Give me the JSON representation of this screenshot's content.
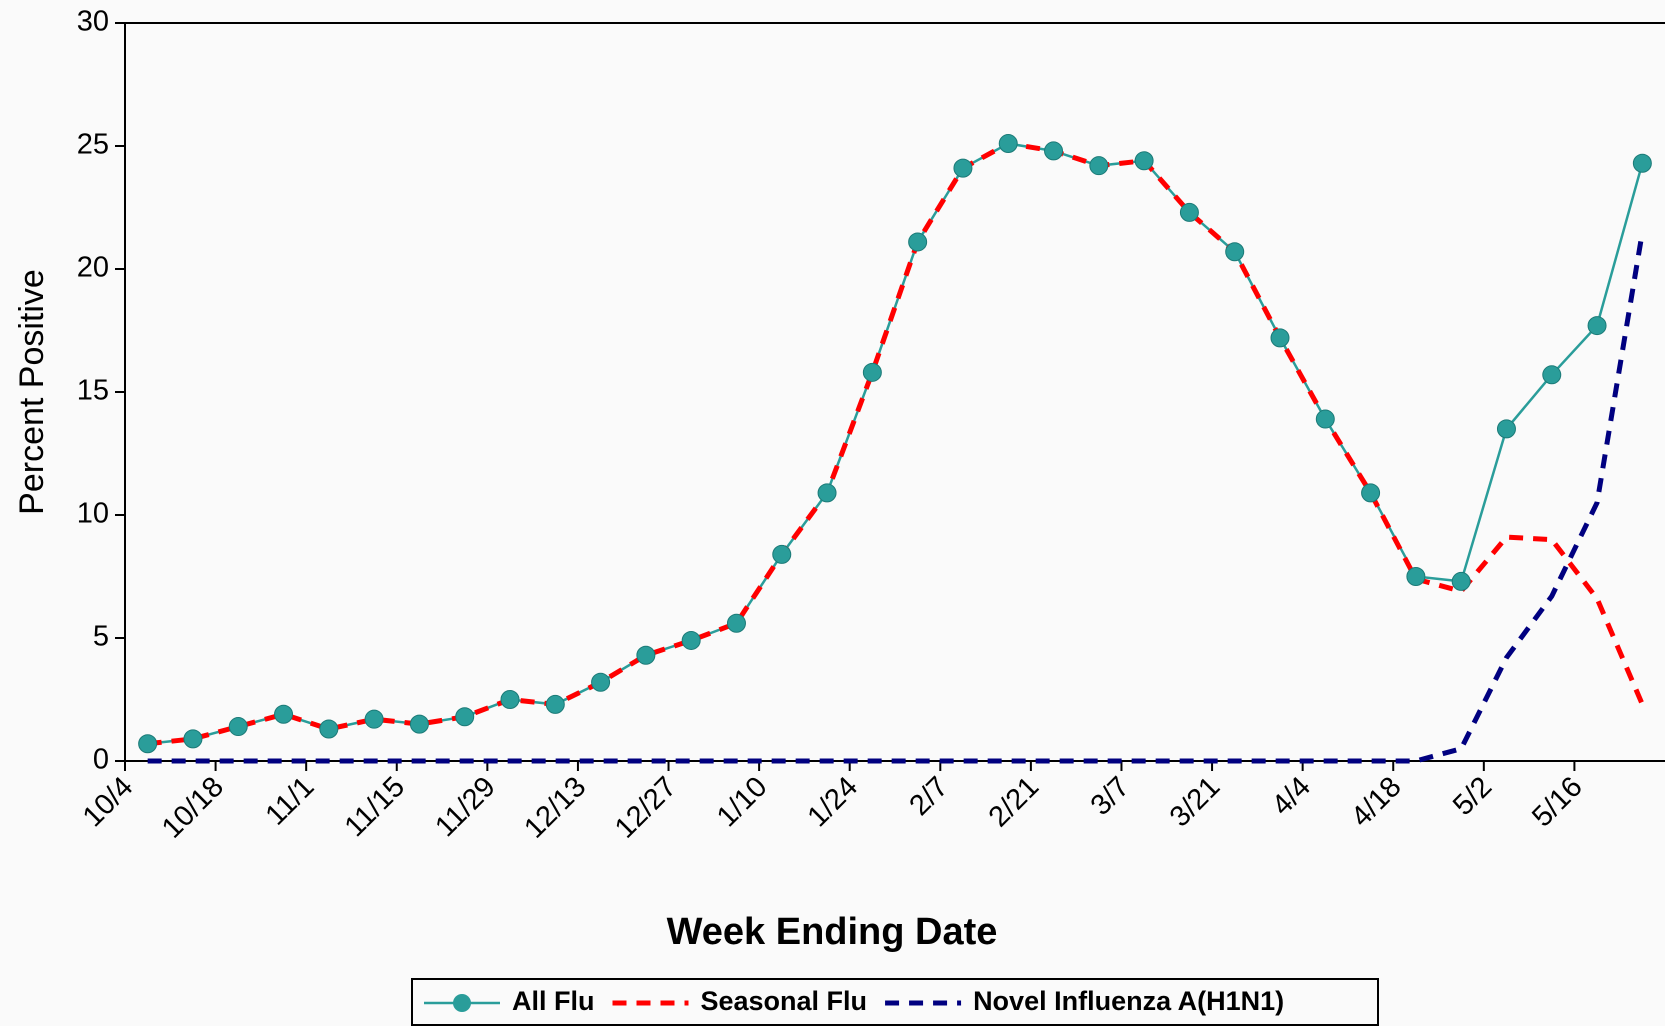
{
  "chart_data": {
    "type": "line",
    "x_label": "Week Ending Date",
    "y_label": "Percent Positive",
    "categories": [
      "10/4",
      null,
      "10/18",
      null,
      "11/1",
      null,
      "11/15",
      null,
      "11/29",
      null,
      "12/13",
      null,
      "12/27",
      null,
      "1/10",
      null,
      "1/24",
      null,
      "2/7",
      null,
      "2/21",
      null,
      "3/7",
      null,
      "3/21",
      null,
      "4/4",
      null,
      "4/18",
      null,
      "5/2",
      null,
      "5/16",
      null
    ],
    "series": [
      {
        "name": "All Flu",
        "color": "#2a9d9a",
        "marker": true,
        "values": [
          0.7,
          0.9,
          1.4,
          1.9,
          1.3,
          1.7,
          1.5,
          1.8,
          2.5,
          2.3,
          3.2,
          4.3,
          4.9,
          5.6,
          8.4,
          10.9,
          15.8,
          21.1,
          24.1,
          25.1,
          24.8,
          24.2,
          24.4,
          22.3,
          20.7,
          17.2,
          13.9,
          10.9,
          7.5,
          7.3,
          13.5,
          15.7,
          17.7,
          24.3
        ]
      },
      {
        "name": "Seasonal Flu",
        "color": "#ff0000",
        "dash": true,
        "values": [
          0.7,
          0.9,
          1.4,
          1.9,
          1.3,
          1.7,
          1.5,
          1.8,
          2.5,
          2.3,
          3.2,
          4.3,
          4.9,
          5.6,
          8.4,
          10.9,
          15.8,
          21.1,
          24.1,
          25.1,
          24.8,
          24.2,
          24.4,
          22.3,
          20.7,
          17.2,
          13.9,
          10.9,
          7.4,
          6.9,
          9.1,
          9.0,
          6.6,
          2.3
        ]
      },
      {
        "name": "Novel Influenza A(H1N1)",
        "color": "#000080",
        "dash": true,
        "values": [
          0,
          0,
          0,
          0,
          0,
          0,
          0,
          0,
          0,
          0,
          0,
          0,
          0,
          0,
          0,
          0,
          0,
          0,
          0,
          0,
          0,
          0,
          0,
          0,
          0,
          0,
          0,
          0,
          0.0,
          0.5,
          4.2,
          6.7,
          10.5,
          21.5
        ]
      }
    ],
    "ylim": [
      0,
      30
    ],
    "yticks": [
      0,
      5,
      10,
      15,
      20,
      25,
      30
    ],
    "grid": false,
    "legend": "bottom"
  }
}
